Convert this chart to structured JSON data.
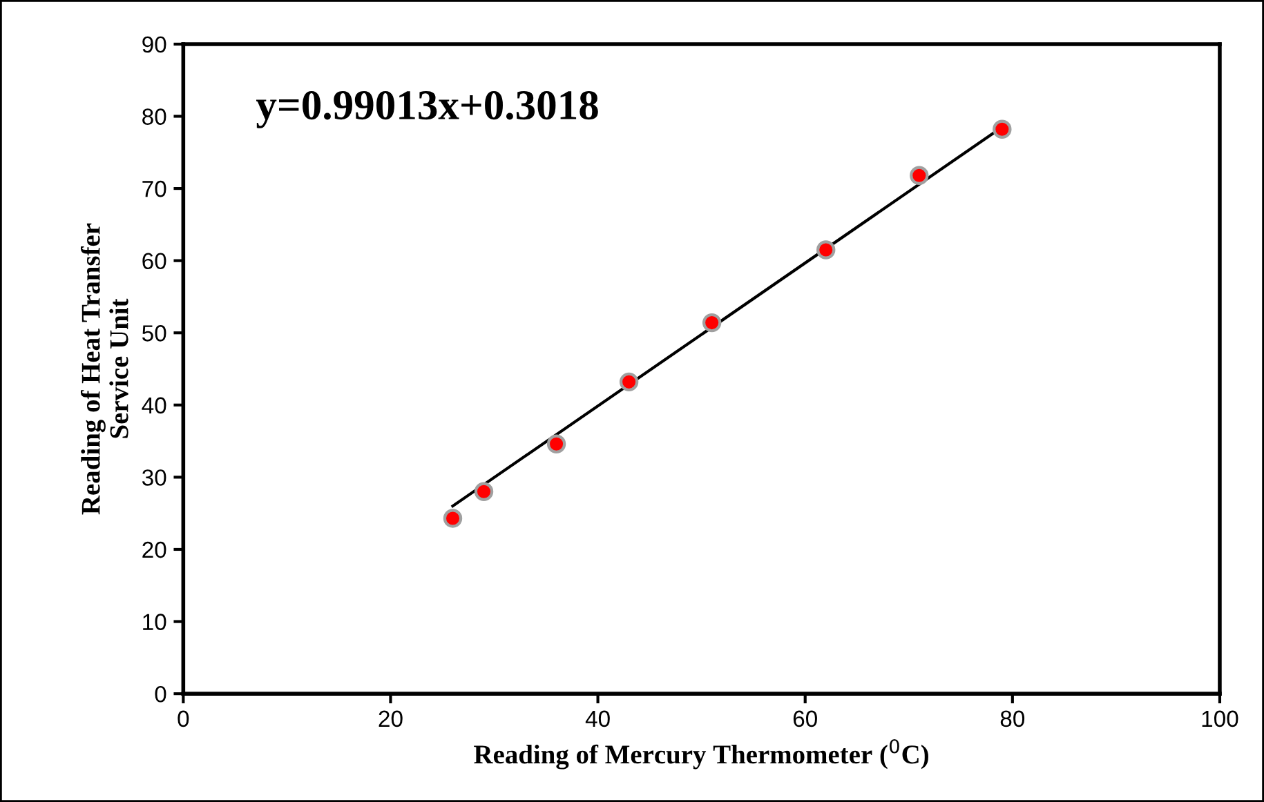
{
  "chart_data": {
    "type": "scatter",
    "xlabel": "Reading of Mercury Thermometer ($^{0}$C)",
    "ylabel": "Reading of Heat Transfer\nService Unit",
    "annotations": [
      "y=0.99013x+0.3018"
    ],
    "x": [
      26,
      29,
      36,
      43,
      51,
      62,
      71,
      79
    ],
    "series": [
      {
        "color": "#ff0000",
        "values": [
          24.3,
          28,
          34.6,
          43.2,
          51.4,
          61.5,
          71.8,
          78.2
        ],
        "marker": "circle"
      },
      {
        "type": "line",
        "color": "#000000",
        "x": [
          26,
          79
        ],
        "values": [
          26,
          78.5
        ],
        "marker": "none",
        "line_style": "solid"
      }
    ],
    "xlim": [
      0,
      100
    ],
    "xticks": [
      0,
      20,
      40,
      60,
      80,
      100
    ],
    "ylim": [
      0,
      90
    ],
    "yticks": [
      0,
      10,
      20,
      30,
      40,
      50,
      60,
      70,
      80,
      90
    ],
    "grid": false,
    "legend": false
  }
}
